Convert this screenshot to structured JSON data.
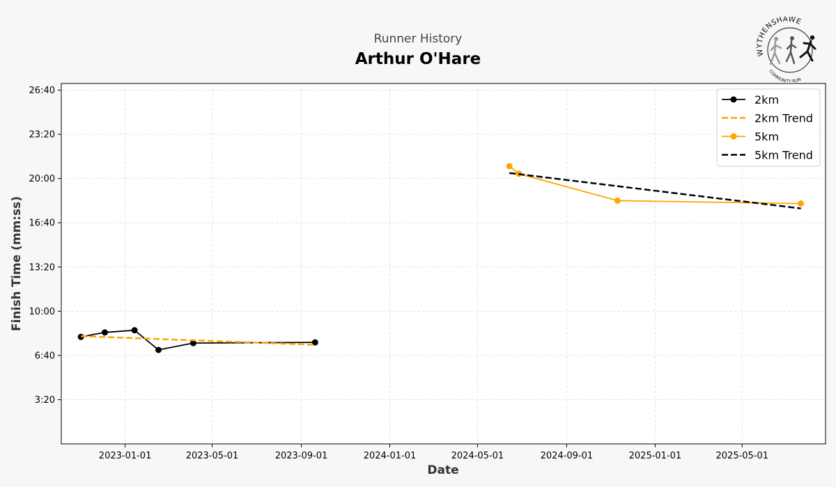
{
  "header": {
    "subtitle": "Runner History",
    "title": "Arthur O'Hare"
  },
  "logo": {
    "text_top": "WYTHENSHAWE",
    "text_bottom": "COMMUNITY RUN"
  },
  "colors": {
    "black": "#000000",
    "orange": "#FFA500",
    "grid": "#dddddd",
    "background": "#f7f7f7"
  },
  "chart_data": {
    "type": "line",
    "xlabel": "Date",
    "ylabel": "Finish Time (mm:ss)",
    "x_ticks": [
      "2023-01-01",
      "2023-05-01",
      "2023-09-01",
      "2024-01-01",
      "2024-05-01",
      "2024-09-01",
      "2025-01-01",
      "2025-05-01"
    ],
    "y_ticks": [
      "3:20",
      "6:40",
      "10:00",
      "13:20",
      "16:40",
      "20:00",
      "23:20",
      "26:40"
    ],
    "y_tick_seconds": [
      200,
      400,
      600,
      800,
      1000,
      1200,
      1400,
      1600
    ],
    "xlim": [
      "2022-10-05",
      "2025-08-24"
    ],
    "ylim_seconds": [
      0,
      1630
    ],
    "grid": true,
    "legend_position": "top-right",
    "series": [
      {
        "name": "2km",
        "color": "#000000",
        "style": "solid",
        "markers": true,
        "points": [
          {
            "date": "2022-11-01",
            "seconds": 484
          },
          {
            "date": "2022-12-04",
            "seconds": 504
          },
          {
            "date": "2023-01-14",
            "seconds": 514
          },
          {
            "date": "2023-02-16",
            "seconds": 425
          },
          {
            "date": "2023-04-05",
            "seconds": 456
          },
          {
            "date": "2023-09-20",
            "seconds": 459
          }
        ]
      },
      {
        "name": "2km Trend",
        "color": "#FFA500",
        "style": "dashed",
        "markers": false,
        "points": [
          {
            "date": "2022-11-01",
            "seconds": 487
          },
          {
            "date": "2023-09-20",
            "seconds": 448
          }
        ]
      },
      {
        "name": "5km",
        "color": "#FFA500",
        "style": "solid",
        "markers": true,
        "points": [
          {
            "date": "2024-06-14",
            "seconds": 1256
          },
          {
            "date": "2024-06-27",
            "seconds": 1222
          },
          {
            "date": "2024-11-10",
            "seconds": 1100
          },
          {
            "date": "2025-07-21",
            "seconds": 1087
          }
        ]
      },
      {
        "name": "5km Trend",
        "color": "#000000",
        "style": "dashed",
        "markers": false,
        "points": [
          {
            "date": "2024-06-14",
            "seconds": 1225
          },
          {
            "date": "2025-07-21",
            "seconds": 1065
          }
        ]
      }
    ]
  }
}
